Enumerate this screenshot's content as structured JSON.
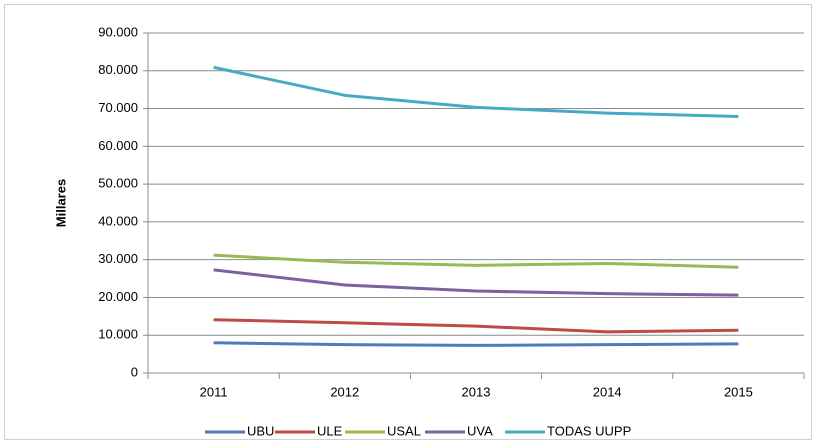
{
  "chart_data": {
    "type": "line",
    "y_label": "Millares",
    "categories": [
      "2011",
      "2012",
      "2013",
      "2014",
      "2015"
    ],
    "series": [
      {
        "name": "UBU",
        "color": "#4a7ebb",
        "values": [
          8000,
          7500,
          7300,
          7500,
          7700
        ]
      },
      {
        "name": "ULE",
        "color": "#be4b48",
        "values": [
          14100,
          13300,
          12400,
          10900,
          11300
        ]
      },
      {
        "name": "USAL",
        "color": "#98b954",
        "values": [
          31200,
          29300,
          28500,
          29000,
          28000
        ]
      },
      {
        "name": "UVA",
        "color": "#7d60a0",
        "values": [
          27300,
          23300,
          21700,
          21000,
          20600
        ]
      },
      {
        "name": "TODAS UUPP",
        "color": "#46aac5",
        "values": [
          80900,
          73500,
          70300,
          68800,
          67900
        ]
      }
    ],
    "ylim": [
      0,
      90000
    ],
    "yticks": [
      0,
      {
        "value": 10000,
        "label": "10.000"
      },
      {
        "value": 20000,
        "label": "20.000"
      },
      {
        "value": 30000,
        "label": "30.000"
      },
      {
        "value": 40000,
        "label": "40.000"
      },
      {
        "value": 50000,
        "label": "50.000"
      },
      {
        "value": 60000,
        "label": "60.000"
      },
      {
        "value": 70000,
        "label": "70.000"
      },
      {
        "value": 80000,
        "label": "80.000"
      },
      {
        "value": 90000,
        "label": "90.000"
      }
    ],
    "grid": true,
    "legend": "bottom"
  }
}
